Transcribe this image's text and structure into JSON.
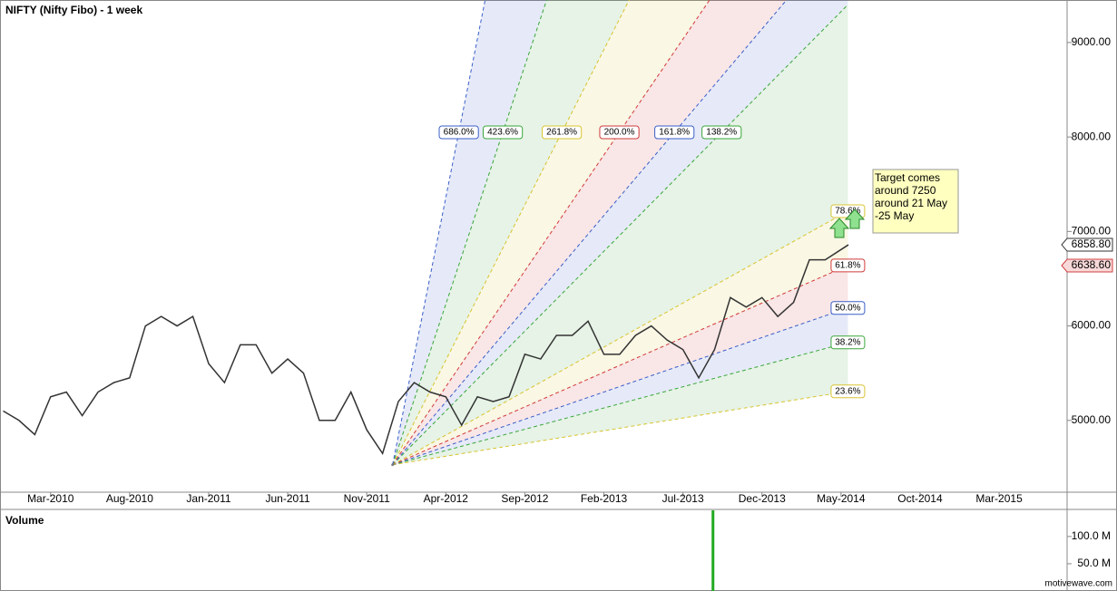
{
  "chart_data": [
    {
      "type": "line",
      "title": "NIFTY (Nifty Fibo) - 1 week",
      "color": "#333333",
      "x": [
        "2009-12",
        "2010-01",
        "2010-02",
        "2010-03",
        "2010-04",
        "2010-05",
        "2010-06",
        "2010-07",
        "2010-08",
        "2010-09",
        "2010-10",
        "2010-11",
        "2010-12",
        "2011-01",
        "2011-02",
        "2011-03",
        "2011-04",
        "2011-05",
        "2011-06",
        "2011-07",
        "2011-08",
        "2011-09",
        "2011-10",
        "2011-11",
        "2011-12",
        "2012-01",
        "2012-02",
        "2012-03",
        "2012-04",
        "2012-05",
        "2012-06",
        "2012-07",
        "2012-08",
        "2012-09",
        "2012-10",
        "2012-11",
        "2012-12",
        "2013-01",
        "2013-02",
        "2013-03",
        "2013-04",
        "2013-05",
        "2013-06",
        "2013-07",
        "2013-08",
        "2013-09",
        "2013-10",
        "2013-11",
        "2013-12",
        "2014-01",
        "2014-02",
        "2014-03",
        "2014-04",
        "2014-05-15"
      ],
      "values": [
        5100,
        5000,
        4850,
        5250,
        5300,
        5050,
        5300,
        5400,
        5450,
        6000,
        6100,
        6000,
        6100,
        5600,
        5400,
        5800,
        5800,
        5500,
        5650,
        5500,
        5000,
        5000,
        5300,
        4900,
        4650,
        5200,
        5400,
        5300,
        5250,
        4950,
        5250,
        5200,
        5250,
        5700,
        5650,
        5900,
        5900,
        6050,
        5700,
        5700,
        5900,
        6000,
        5850,
        5750,
        5450,
        5750,
        6300,
        6200,
        6300,
        6100,
        6250,
        6700,
        6700,
        6858.8
      ],
      "xlim": [
        "2009-11-25",
        "2015-07-10"
      ],
      "xticks": [
        {
          "value": "2010-03",
          "label": "Mar-2010"
        },
        {
          "value": "2010-08",
          "label": "Aug-2010"
        },
        {
          "value": "2011-01",
          "label": "Jan-2011"
        },
        {
          "value": "2011-06",
          "label": "Jun-2011"
        },
        {
          "value": "2011-11",
          "label": "Nov-2011"
        },
        {
          "value": "2012-04",
          "label": "Apr-2012"
        },
        {
          "value": "2012-09",
          "label": "Sep-2012"
        },
        {
          "value": "2013-02",
          "label": "Feb-2013"
        },
        {
          "value": "2013-07",
          "label": "Jul-2013"
        },
        {
          "value": "2013-12",
          "label": "Dec-2013"
        },
        {
          "value": "2014-05",
          "label": "May-2014"
        },
        {
          "value": "2014-10",
          "label": "Oct-2014"
        },
        {
          "value": "2015-03",
          "label": "Mar-2015"
        }
      ],
      "ylim": [
        4240,
        9450
      ],
      "yticks": [
        {
          "value": 5000,
          "label": "5000.00"
        },
        {
          "value": 6000,
          "label": "6000.00"
        },
        {
          "value": 7000,
          "label": "7000.00"
        },
        {
          "value": 8000,
          "label": "8000.00"
        },
        {
          "value": 9000,
          "label": "9000.00"
        }
      ],
      "price_labels": [
        {
          "value": 6858.8,
          "label": "6858.80",
          "color": "#333333"
        },
        {
          "value": 6638.6,
          "label": "6638.60",
          "color": "#d04040"
        }
      ],
      "fan": {
        "origin_date": "2011-12-20",
        "origin_price": 4530,
        "end_date": "2014-05-14",
        "levels": [
          {
            "label": "23.6%",
            "end": 5307,
            "color": "#d8c430"
          },
          {
            "label": "38.2%",
            "end": 5825,
            "color": "#3aa63a"
          },
          {
            "label": "50.0%",
            "end": 6190,
            "color": "#3a5ec8"
          },
          {
            "label": "61.8%",
            "end": 6640,
            "color": "#d03a3a"
          },
          {
            "label": "78.6%",
            "end": 7215,
            "color": "#d8c430"
          },
          {
            "label": "138.2%",
            "end": 9400,
            "color": "#3aa63a"
          },
          {
            "label": "161.8%",
            "end": 10216,
            "color": "#3a5ec8"
          },
          {
            "label": "200.0%",
            "end": 11596,
            "color": "#d03a3a"
          },
          {
            "label": "261.8%",
            "end": 13999,
            "color": "#d8c430"
          },
          {
            "label": "423.6%",
            "end": 19070,
            "color": "#3aa63a"
          },
          {
            "label": "686.0%",
            "end": 28730,
            "color": "#3a5ec8"
          }
        ]
      },
      "annotation": "Target comes around 7250 around 21 May -25 May"
    },
    {
      "type": "bar",
      "title": "Volume",
      "color": "#22aa22",
      "x": [
        "2013-08-28"
      ],
      "values": [
        150000000
      ],
      "ylim": [
        0,
        148000000
      ],
      "yticks": [
        {
          "value": 50000000,
          "label": "50.0 M"
        },
        {
          "value": 100000000,
          "label": "100.0 M"
        }
      ]
    }
  ],
  "watermark": "motivewave.com"
}
